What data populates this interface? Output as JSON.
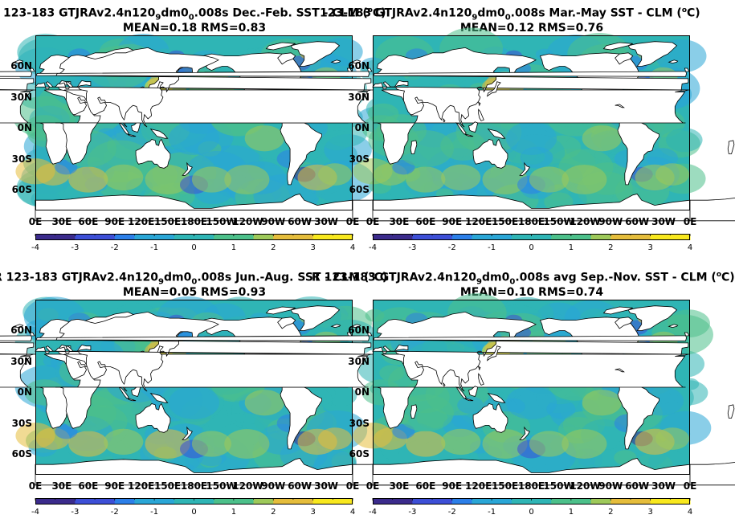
{
  "panels": [
    {
      "title_line1": "123-183 GTJRAv2.4n120",
      "sub1": "9",
      "mid1": "dm0",
      "sub2": "0",
      "tail1": ".008s  Dec.-Feb. SST - CLM (",
      "sup": "o",
      "tail2": "C)",
      "stats": "MEAN=0.18   RMS=0.83"
    },
    {
      "title_line1": "123-183 GTJRAv2.4n120",
      "sub1": "9",
      "mid1": "dm0",
      "sub2": "0",
      "tail1": ".008s Mar.-May SST - CLM (",
      "sup": "o",
      "tail2": "C)",
      "stats": "MEAN=0.12   RMS=0.76"
    },
    {
      "title_line1": "R 123-183 GTJRAv2.4n120",
      "sub1": "9",
      "mid1": "dm0",
      "sub2": "0",
      "tail1": ".008s Jun.-Aug. SST - CLM (",
      "sup": "o",
      "tail2": "C)",
      "stats": "MEAN=0.05   RMS=0.93"
    },
    {
      "title_line1": "R 123-183 GTJRAv2.4n120",
      "sub1": "9",
      "mid1": "dm0",
      "sub2": "0",
      "tail1": ".008s avg Sep.-Nov. SST - CLM (",
      "sup": "o",
      "tail2": "C)",
      "stats": "MEAN=0.10   RMS=0.74"
    }
  ],
  "lat_labels": [
    "60N",
    "30N",
    "0N",
    "30S",
    "60S"
  ],
  "lon_labels": [
    "0E",
    "30E",
    "60E",
    "90E",
    "120E",
    "150E",
    "180E",
    "150W",
    "120W",
    "90W",
    "60W",
    "30W",
    "0E"
  ],
  "colorbar_ticks": [
    "-4",
    "-3",
    "-2",
    "-1",
    "0",
    "1",
    "2",
    "3",
    "4"
  ],
  "colors": {
    "ocean_base": "#2fb5b5",
    "land": "#ffffff",
    "coast": "#000000",
    "cmap": [
      "#3b2b8c",
      "#3d4fd6",
      "#2c7fe8",
      "#2aa6d6",
      "#2fb5b5",
      "#4cc08a",
      "#9ec95a",
      "#e5bd3c",
      "#f8e81e"
    ]
  }
}
